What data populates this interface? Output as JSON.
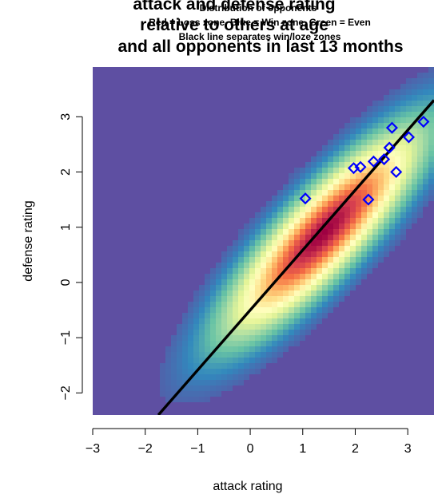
{
  "chart_data": {
    "type": "scatter",
    "title": "attack and defense rating",
    "title_line2": "relative to others at age",
    "title_line3": "and all opponents in last 13 months",
    "subtitle": "Distribution of opponents",
    "subtitle_line2": "Red = Loss zone, Blue = Win zone, Green = Even",
    "subtitle_line3": "Black line separates win/loze zones",
    "xlabel": "attack rating",
    "ylabel": "defense rating",
    "xlim": [
      -3.0,
      3.5
    ],
    "ylim": [
      -2.4,
      3.9
    ],
    "x_ticks": [
      "-3",
      "-2",
      "-1",
      "0",
      "1",
      "2",
      "3"
    ],
    "y_ticks": [
      "-2",
      "-1",
      "0",
      "1",
      "2",
      "3"
    ],
    "grid": false,
    "background": "density heatmap of opponents (Spectral palette), peak near (1.4, 0.9)",
    "separator_line": {
      "x": [
        -1.75,
        3.5
      ],
      "y": [
        -2.4,
        3.3
      ],
      "color": "#000000"
    },
    "points": {
      "color": "#0000ff",
      "marker": "diamond",
      "x": [
        1.05,
        1.97,
        2.1,
        2.25,
        2.35,
        2.55,
        2.65,
        2.7,
        2.78,
        3.02,
        3.3
      ],
      "y": [
        1.52,
        2.07,
        2.09,
        1.5,
        2.19,
        2.23,
        2.44,
        2.8,
        2.0,
        2.63,
        2.91
      ]
    },
    "palette": [
      "#5E4FA2",
      "#3288BD",
      "#66C2A5",
      "#ABDDA4",
      "#E6F598",
      "#FFFFBF",
      "#FEE08B",
      "#FDAE61",
      "#F46D43",
      "#D53E4F",
      "#9E0142"
    ]
  }
}
